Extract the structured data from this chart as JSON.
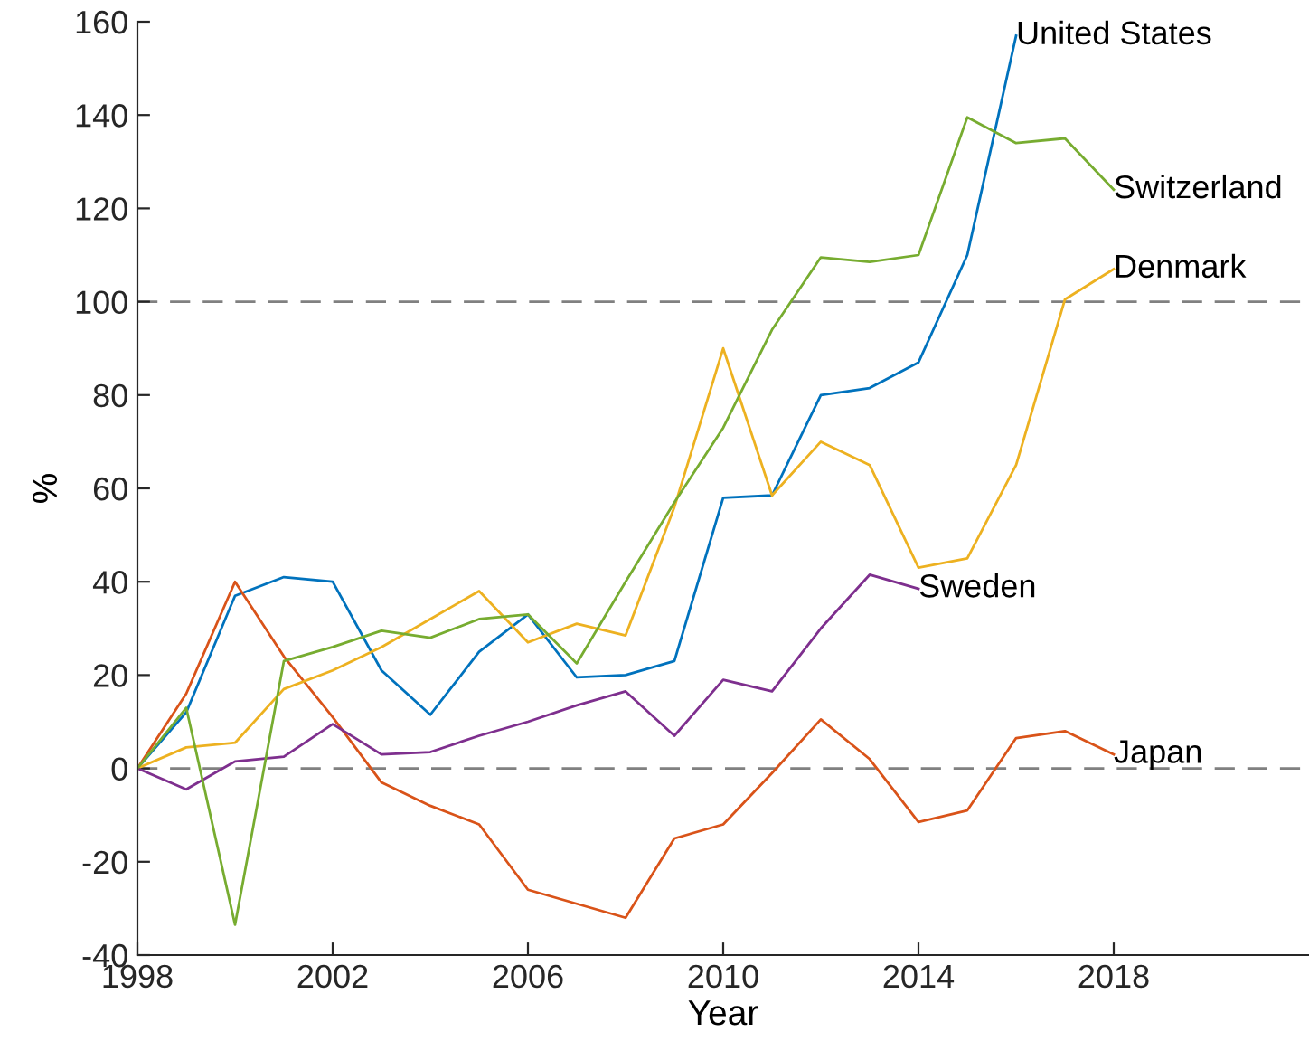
{
  "chart_data": {
    "type": "line",
    "xlabel": "Year",
    "ylabel": "%",
    "x": [
      1998,
      1999,
      2000,
      2001,
      2002,
      2003,
      2004,
      2005,
      2006,
      2007,
      2008,
      2009,
      2010,
      2011,
      2012,
      2013,
      2014,
      2015,
      2016,
      2017,
      2018
    ],
    "series": [
      {
        "name": "United States",
        "color": "#0072bd",
        "values": [
          0,
          12,
          37,
          41,
          40,
          21,
          11.5,
          25,
          33,
          19.5,
          20,
          23,
          58,
          58.5,
          80,
          81.5,
          87,
          110,
          157,
          null,
          null
        ]
      },
      {
        "name": "Japan",
        "color": "#d95319",
        "values": [
          0,
          16,
          40,
          24,
          11,
          -3,
          -8,
          -12,
          -26,
          -29,
          -32,
          -15,
          -12,
          -1,
          10.5,
          2,
          -11.5,
          -9,
          6.5,
          8,
          3
        ]
      },
      {
        "name": "Denmark",
        "color": "#edb120",
        "values": [
          0,
          4.5,
          5.5,
          17,
          21,
          26,
          32,
          38,
          27,
          31,
          28.5,
          56,
          90,
          58.5,
          70,
          65,
          43,
          45,
          65,
          100.5,
          107
        ]
      },
      {
        "name": "Sweden",
        "color": "#7e2f8e",
        "values": [
          0,
          -4.5,
          1.5,
          2.5,
          9.5,
          3,
          3.5,
          7,
          10,
          13.5,
          16.5,
          7,
          19,
          16.5,
          30,
          41.5,
          38.5,
          null,
          null,
          null,
          null
        ]
      },
      {
        "name": "Switzerland",
        "color": "#77ac30",
        "values": [
          0,
          13,
          -33.5,
          23,
          26,
          29.5,
          28,
          32,
          33,
          22.5,
          40,
          57,
          73,
          94,
          109.5,
          108.5,
          110,
          139.5,
          134,
          135,
          124
        ]
      }
    ],
    "xlim": [
      1998,
      2022
    ],
    "xticks": [
      1998,
      2002,
      2006,
      2010,
      2014,
      2018
    ],
    "ylim": [
      -40,
      160
    ],
    "yticks": [
      -40,
      -20,
      0,
      20,
      40,
      60,
      80,
      100,
      120,
      140,
      160
    ],
    "ref_lines": [
      {
        "axis": "y",
        "value": 0,
        "color": "#808080",
        "line_style": "dashed"
      },
      {
        "axis": "y",
        "value": 100,
        "color": "#808080",
        "line_style": "dashed"
      }
    ],
    "grid": false,
    "legend": false
  }
}
